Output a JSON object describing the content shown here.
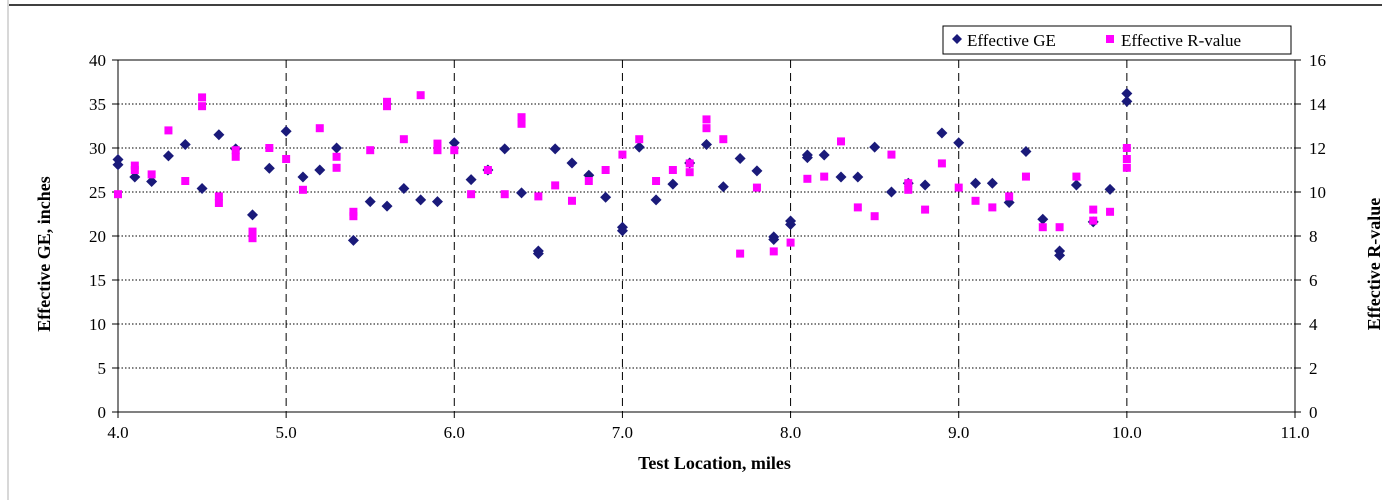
{
  "chart_data": {
    "type": "scatter",
    "xlabel": "Test Location, miles",
    "ylabel": "Effective GE, inches",
    "y2label": "Effective R-value",
    "xlim": [
      4.0,
      11.0
    ],
    "ylim": [
      0,
      40
    ],
    "y2lim": [
      0,
      16
    ],
    "x_ticks": [
      "4.0",
      "5.0",
      "6.0",
      "7.0",
      "8.0",
      "9.0",
      "10.0",
      "11.0"
    ],
    "y_ticks": [
      "0",
      "5",
      "10",
      "15",
      "20",
      "25",
      "30",
      "35",
      "40"
    ],
    "y2_ticks": [
      "0",
      "2",
      "4",
      "6",
      "8",
      "10",
      "12",
      "14",
      "16"
    ],
    "grid": "horizontal major gridlines (dotted) and vertical dashed lines at x ticks",
    "legend_position": "top-right",
    "series": [
      {
        "name": "Effective GE",
        "axis": "left",
        "color": "#1a1a7a",
        "marker": "diamond",
        "points": [
          [
            4.0,
            28.7
          ],
          [
            4.0,
            28.1
          ],
          [
            4.1,
            26.7
          ],
          [
            4.2,
            26.2
          ],
          [
            4.3,
            29.1
          ],
          [
            4.4,
            30.4
          ],
          [
            4.5,
            25.4
          ],
          [
            4.6,
            31.5
          ],
          [
            4.7,
            29.9
          ],
          [
            4.8,
            22.4
          ],
          [
            4.9,
            27.7
          ],
          [
            5.0,
            31.9
          ],
          [
            5.1,
            26.7
          ],
          [
            5.2,
            27.5
          ],
          [
            5.3,
            30.0
          ],
          [
            5.4,
            19.5
          ],
          [
            5.5,
            23.9
          ],
          [
            5.6,
            23.4
          ],
          [
            5.7,
            25.4
          ],
          [
            5.8,
            24.1
          ],
          [
            5.9,
            23.9
          ],
          [
            6.0,
            30.6
          ],
          [
            6.1,
            26.4
          ],
          [
            6.2,
            27.5
          ],
          [
            6.3,
            29.9
          ],
          [
            6.4,
            24.9
          ],
          [
            6.5,
            18.3
          ],
          [
            6.5,
            18.0
          ],
          [
            6.6,
            29.9
          ],
          [
            6.7,
            28.3
          ],
          [
            6.8,
            26.9
          ],
          [
            6.9,
            24.4
          ],
          [
            7.0,
            21.0
          ],
          [
            7.0,
            20.6
          ],
          [
            7.1,
            30.1
          ],
          [
            7.2,
            24.1
          ],
          [
            7.3,
            25.9
          ],
          [
            7.4,
            28.3
          ],
          [
            7.5,
            30.4
          ],
          [
            7.6,
            25.6
          ],
          [
            7.7,
            28.8
          ],
          [
            7.8,
            27.4
          ],
          [
            7.9,
            19.9
          ],
          [
            7.9,
            19.6
          ],
          [
            8.0,
            21.7
          ],
          [
            8.0,
            21.3
          ],
          [
            8.1,
            29.2
          ],
          [
            8.1,
            28.9
          ],
          [
            8.2,
            29.2
          ],
          [
            8.3,
            26.7
          ],
          [
            8.4,
            26.7
          ],
          [
            8.5,
            30.1
          ],
          [
            8.6,
            25.0
          ],
          [
            8.7,
            26.0
          ],
          [
            8.8,
            25.8
          ],
          [
            8.9,
            31.7
          ],
          [
            9.0,
            30.6
          ],
          [
            9.1,
            26.0
          ],
          [
            9.2,
            26.0
          ],
          [
            9.3,
            23.8
          ],
          [
            9.4,
            29.6
          ],
          [
            9.5,
            21.9
          ],
          [
            9.6,
            18.3
          ],
          [
            9.6,
            17.8
          ],
          [
            9.7,
            25.8
          ],
          [
            9.8,
            21.6
          ],
          [
            9.9,
            25.3
          ],
          [
            10.0,
            36.2
          ],
          [
            10.0,
            35.3
          ]
        ]
      },
      {
        "name": "Effective R-value",
        "axis": "right",
        "color": "#ff00ff",
        "marker": "square",
        "points": [
          [
            4.0,
            9.9
          ],
          [
            4.1,
            11.2
          ],
          [
            4.1,
            11.0
          ],
          [
            4.2,
            10.8
          ],
          [
            4.3,
            12.8
          ],
          [
            4.4,
            10.5
          ],
          [
            4.5,
            14.3
          ],
          [
            4.5,
            13.9
          ],
          [
            4.6,
            9.8
          ],
          [
            4.6,
            9.5
          ],
          [
            4.7,
            11.9
          ],
          [
            4.7,
            11.6
          ],
          [
            4.8,
            8.2
          ],
          [
            4.8,
            7.9
          ],
          [
            4.9,
            12.0
          ],
          [
            5.0,
            11.5
          ],
          [
            5.1,
            10.1
          ],
          [
            5.2,
            12.9
          ],
          [
            5.3,
            11.6
          ],
          [
            5.3,
            11.1
          ],
          [
            5.4,
            9.1
          ],
          [
            5.4,
            8.9
          ],
          [
            5.5,
            11.9
          ],
          [
            5.6,
            14.1
          ],
          [
            5.6,
            13.9
          ],
          [
            5.7,
            12.4
          ],
          [
            5.8,
            14.4
          ],
          [
            5.9,
            12.2
          ],
          [
            5.9,
            11.9
          ],
          [
            6.0,
            11.9
          ],
          [
            6.1,
            9.9
          ],
          [
            6.2,
            11.0
          ],
          [
            6.3,
            9.9
          ],
          [
            6.4,
            13.4
          ],
          [
            6.4,
            13.1
          ],
          [
            6.5,
            9.8
          ],
          [
            6.6,
            10.3
          ],
          [
            6.7,
            9.6
          ],
          [
            6.8,
            10.5
          ],
          [
            6.9,
            11.0
          ],
          [
            7.0,
            11.7
          ],
          [
            7.1,
            12.4
          ],
          [
            7.2,
            10.5
          ],
          [
            7.3,
            11.0
          ],
          [
            7.4,
            11.3
          ],
          [
            7.4,
            10.9
          ],
          [
            7.5,
            13.3
          ],
          [
            7.5,
            12.9
          ],
          [
            7.6,
            12.4
          ],
          [
            7.7,
            7.2
          ],
          [
            7.8,
            10.2
          ],
          [
            7.9,
            7.3
          ],
          [
            8.0,
            7.7
          ],
          [
            8.1,
            10.6
          ],
          [
            8.2,
            10.7
          ],
          [
            8.3,
            12.3
          ],
          [
            8.4,
            9.3
          ],
          [
            8.5,
            8.9
          ],
          [
            8.6,
            11.7
          ],
          [
            8.7,
            10.4
          ],
          [
            8.7,
            10.1
          ],
          [
            8.8,
            9.2
          ],
          [
            8.9,
            11.3
          ],
          [
            9.0,
            10.2
          ],
          [
            9.1,
            9.6
          ],
          [
            9.2,
            9.3
          ],
          [
            9.3,
            9.8
          ],
          [
            9.4,
            10.7
          ],
          [
            9.5,
            8.4
          ],
          [
            9.6,
            8.4
          ],
          [
            9.7,
            10.7
          ],
          [
            9.8,
            9.2
          ],
          [
            9.8,
            8.7
          ],
          [
            9.9,
            9.1
          ],
          [
            10.0,
            12.0
          ],
          [
            10.0,
            11.5
          ],
          [
            10.0,
            11.1
          ]
        ]
      }
    ]
  }
}
